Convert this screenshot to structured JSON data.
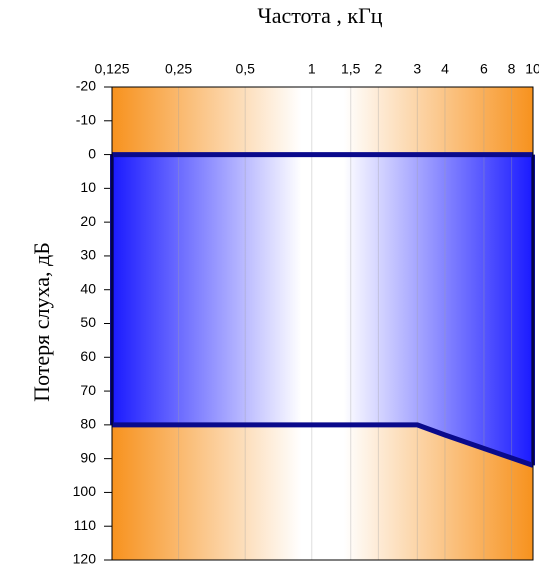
{
  "chart_data": {
    "type": "area",
    "title": "Частота , кГц",
    "y_label": "Потеря слуха, дБ",
    "x": [
      0.125,
      3,
      4,
      10
    ],
    "upper": {
      "values": [
        0,
        0,
        0,
        0
      ]
    },
    "lower": {
      "values": [
        80,
        80,
        83,
        92
      ]
    },
    "color": "#1a1aff",
    "line_color": "#0a0a8c",
    "background_color": "#f7921e",
    "x_log": true,
    "y_inverted": true,
    "xlim": [
      0.125,
      10
    ],
    "xticks": [
      {
        "value": 0.125,
        "label": "0,125"
      },
      {
        "value": 0.25,
        "label": "0,25"
      },
      {
        "value": 0.5,
        "label": "0,5"
      },
      1,
      {
        "value": 1.5,
        "label": "1,5"
      },
      2,
      3,
      4,
      6,
      8,
      10
    ],
    "ylim": [
      -20,
      120
    ],
    "yticks": [
      -20,
      -10,
      0,
      10,
      20,
      30,
      40,
      50,
      60,
      70,
      80,
      90,
      100,
      110,
      120
    ],
    "grid": true
  }
}
